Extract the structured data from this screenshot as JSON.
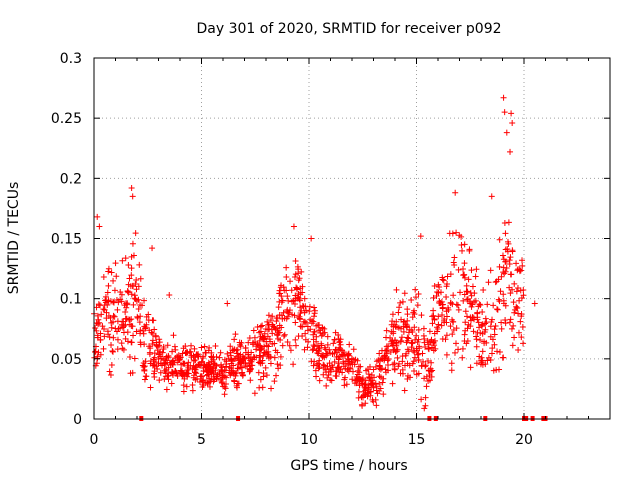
{
  "chart_data": {
    "type": "scatter",
    "title": "Day 301 of 2020, SRMTID for receiver p092",
    "xlabel": "GPS time / hours",
    "ylabel": "SRMTID / TECUs",
    "xlim": [
      0,
      24
    ],
    "ylim": [
      0,
      0.3
    ],
    "xticks": [
      0,
      5,
      10,
      15,
      20
    ],
    "xtick_labels": [
      "0",
      "5",
      "10",
      "15",
      "20"
    ],
    "yticks": [
      0,
      0.05,
      0.1,
      0.15,
      0.2,
      0.25,
      0.3
    ],
    "ytick_labels": [
      "0",
      "0.05",
      "0.1",
      "0.15",
      "0.2",
      "0.25",
      "0.3"
    ],
    "grid": true,
    "marker": "+",
    "color": "#ff0000",
    "trend": {
      "x": [
        0,
        0.5,
        1,
        1.5,
        2,
        2.3,
        2.6,
        3,
        4,
        5,
        6,
        6.5,
        7,
        8,
        8.5,
        9,
        9.5,
        10,
        10.5,
        11,
        11.5,
        12,
        12.5,
        13,
        13.5,
        14,
        14.5,
        15,
        15.3,
        15.6,
        16,
        16.5,
        17,
        17.5,
        18,
        18.5,
        19,
        19.3,
        19.6,
        20
      ],
      "y": [
        0.07,
        0.085,
        0.09,
        0.085,
        0.1,
        0.06,
        0.055,
        0.05,
        0.045,
        0.045,
        0.04,
        0.045,
        0.05,
        0.06,
        0.07,
        0.09,
        0.095,
        0.08,
        0.06,
        0.05,
        0.05,
        0.045,
        0.03,
        0.03,
        0.045,
        0.06,
        0.065,
        0.065,
        0.05,
        0.05,
        0.09,
        0.1,
        0.11,
        0.09,
        0.07,
        0.08,
        0.1,
        0.13,
        0.11,
        0.1
      ]
    },
    "spread": {
      "x": [
        0,
        2,
        3,
        5,
        7,
        8,
        9,
        10,
        11,
        12,
        13,
        14,
        15,
        16,
        17,
        18,
        19,
        20
      ],
      "y": [
        0.035,
        0.05,
        0.02,
        0.015,
        0.02,
        0.025,
        0.035,
        0.03,
        0.025,
        0.015,
        0.015,
        0.03,
        0.035,
        0.03,
        0.05,
        0.03,
        0.06,
        0.04
      ]
    },
    "spikes": [
      {
        "x": 0.15,
        "y": 0.168
      },
      {
        "x": 0.25,
        "y": 0.16
      },
      {
        "x": 1.6,
        "y": 0.128
      },
      {
        "x": 1.75,
        "y": 0.192
      },
      {
        "x": 1.8,
        "y": 0.185
      },
      {
        "x": 2.7,
        "y": 0.142
      },
      {
        "x": 3.5,
        "y": 0.103
      },
      {
        "x": 6.2,
        "y": 0.096
      },
      {
        "x": 9.3,
        "y": 0.16
      },
      {
        "x": 10.1,
        "y": 0.15
      },
      {
        "x": 15.2,
        "y": 0.152
      },
      {
        "x": 16.8,
        "y": 0.188
      },
      {
        "x": 18.5,
        "y": 0.185
      },
      {
        "x": 19.05,
        "y": 0.267
      },
      {
        "x": 19.1,
        "y": 0.255
      },
      {
        "x": 19.2,
        "y": 0.238
      },
      {
        "x": 19.35,
        "y": 0.222
      },
      {
        "x": 19.4,
        "y": 0.254
      },
      {
        "x": 19.45,
        "y": 0.246
      },
      {
        "x": 20.5,
        "y": 0.096
      }
    ],
    "zero_markers_x": [
      2.2,
      6.7,
      15.6,
      15.9,
      18.2,
      20.0,
      20.1,
      20.4,
      20.9,
      21.0
    ]
  }
}
